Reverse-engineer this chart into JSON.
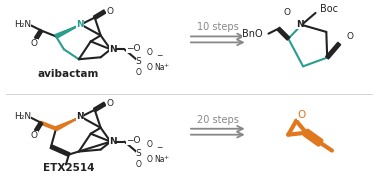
{
  "background_color": "#ffffff",
  "teal_color": "#2a9d8f",
  "orange_color": "#e07820",
  "black_color": "#222222",
  "gray_color": "#888888",
  "label_avibactam": "avibactam",
  "label_etx": "ETX2514",
  "steps_top": "10 steps",
  "steps_bottom": "20 steps",
  "figsize": [
    3.78,
    1.87
  ],
  "dpi": 100
}
